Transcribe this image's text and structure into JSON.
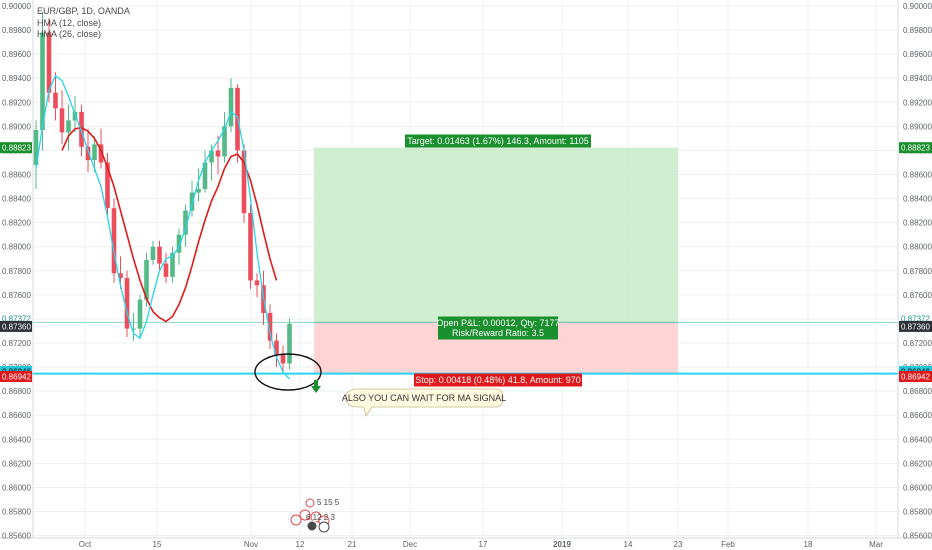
{
  "header": {
    "symbol_line": "EUR/GBP, 1D, OANDA",
    "hma_fast": "HMA (12, close)",
    "hma_slow": "HMA (26, close)"
  },
  "chart_data": {
    "type": "candlestick",
    "symbol": "EUR/GBP",
    "interval": "1D",
    "source": "OANDA",
    "ylim": [
      0.8558,
      0.9005
    ],
    "y_ticks": [
      "0.90000",
      "0.89800",
      "0.89600",
      "0.89400",
      "0.89200",
      "0.89000",
      "0.88800",
      "0.88600",
      "0.88400",
      "0.88200",
      "0.88000",
      "0.87800",
      "0.87600",
      "0.87400",
      "0.87200",
      "0.87000",
      "0.86800",
      "0.86600",
      "0.86400",
      "0.86200",
      "0.86000",
      "0.85800",
      "0.85600"
    ],
    "x_ticks": [
      "Oct",
      "15",
      "Nov",
      "12",
      "21",
      "Dec",
      "17",
      "2019",
      "14",
      "23",
      "Feb",
      "18",
      "Mar"
    ],
    "candles": [
      {
        "o": 0.8868,
        "h": 0.8905,
        "l": 0.8848,
        "c": 0.8897
      },
      {
        "o": 0.8897,
        "h": 0.8995,
        "l": 0.888,
        "c": 0.8978
      },
      {
        "o": 0.8978,
        "h": 0.899,
        "l": 0.892,
        "c": 0.8928
      },
      {
        "o": 0.8928,
        "h": 0.8945,
        "l": 0.8905,
        "c": 0.8915
      },
      {
        "o": 0.8915,
        "h": 0.893,
        "l": 0.8885,
        "c": 0.8895
      },
      {
        "o": 0.8895,
        "h": 0.8918,
        "l": 0.888,
        "c": 0.8905
      },
      {
        "o": 0.8905,
        "h": 0.8925,
        "l": 0.8895,
        "c": 0.8912
      },
      {
        "o": 0.8912,
        "h": 0.8918,
        "l": 0.8875,
        "c": 0.8883
      },
      {
        "o": 0.8883,
        "h": 0.8898,
        "l": 0.8862,
        "c": 0.8872
      },
      {
        "o": 0.8872,
        "h": 0.8892,
        "l": 0.8862,
        "c": 0.8885
      },
      {
        "o": 0.8885,
        "h": 0.8898,
        "l": 0.8865,
        "c": 0.887
      },
      {
        "o": 0.887,
        "h": 0.8878,
        "l": 0.8825,
        "c": 0.8832
      },
      {
        "o": 0.8832,
        "h": 0.884,
        "l": 0.877,
        "c": 0.8778
      },
      {
        "o": 0.8778,
        "h": 0.8792,
        "l": 0.8765,
        "c": 0.8774
      },
      {
        "o": 0.8774,
        "h": 0.878,
        "l": 0.8725,
        "c": 0.8732
      },
      {
        "o": 0.8732,
        "h": 0.8745,
        "l": 0.8722,
        "c": 0.8732
      },
      {
        "o": 0.8732,
        "h": 0.876,
        "l": 0.8725,
        "c": 0.8756
      },
      {
        "o": 0.8756,
        "h": 0.8795,
        "l": 0.875,
        "c": 0.8789
      },
      {
        "o": 0.8789,
        "h": 0.8805,
        "l": 0.8785,
        "c": 0.88
      },
      {
        "o": 0.88,
        "h": 0.8805,
        "l": 0.878,
        "c": 0.8786
      },
      {
        "o": 0.8786,
        "h": 0.8795,
        "l": 0.877,
        "c": 0.8775
      },
      {
        "o": 0.8775,
        "h": 0.88,
        "l": 0.877,
        "c": 0.8795
      },
      {
        "o": 0.8795,
        "h": 0.8815,
        "l": 0.8785,
        "c": 0.881
      },
      {
        "o": 0.881,
        "h": 0.8835,
        "l": 0.88,
        "c": 0.883
      },
      {
        "o": 0.883,
        "h": 0.8855,
        "l": 0.8825,
        "c": 0.8845
      },
      {
        "o": 0.8845,
        "h": 0.8865,
        "l": 0.8838,
        "c": 0.8848
      },
      {
        "o": 0.8848,
        "h": 0.888,
        "l": 0.8845,
        "c": 0.887
      },
      {
        "o": 0.887,
        "h": 0.8885,
        "l": 0.8855,
        "c": 0.888
      },
      {
        "o": 0.888,
        "h": 0.8892,
        "l": 0.886,
        "c": 0.8875
      },
      {
        "o": 0.8875,
        "h": 0.8912,
        "l": 0.887,
        "c": 0.89
      },
      {
        "o": 0.89,
        "h": 0.894,
        "l": 0.8895,
        "c": 0.8932
      },
      {
        "o": 0.8932,
        "h": 0.8935,
        "l": 0.887,
        "c": 0.888
      },
      {
        "o": 0.888,
        "h": 0.8885,
        "l": 0.882,
        "c": 0.8828
      },
      {
        "o": 0.8828,
        "h": 0.8835,
        "l": 0.8765,
        "c": 0.8772
      },
      {
        "o": 0.8772,
        "h": 0.8778,
        "l": 0.8758,
        "c": 0.8768
      },
      {
        "o": 0.8768,
        "h": 0.878,
        "l": 0.8735,
        "c": 0.8745
      },
      {
        "o": 0.8745,
        "h": 0.8752,
        "l": 0.8715,
        "c": 0.8722
      },
      {
        "o": 0.8722,
        "h": 0.8728,
        "l": 0.87,
        "c": 0.871
      },
      {
        "o": 0.871,
        "h": 0.8718,
        "l": 0.8695,
        "c": 0.8703
      },
      {
        "o": 0.8703,
        "h": 0.874,
        "l": 0.8698,
        "c": 0.8736
      }
    ],
    "hma_12": [
      0.8865,
      0.89,
      0.893,
      0.8942,
      0.8938,
      0.8925,
      0.891,
      0.8896,
      0.888,
      0.8865,
      0.885,
      0.8825,
      0.8795,
      0.8768,
      0.8745,
      0.8728,
      0.8724,
      0.8738,
      0.876,
      0.878,
      0.879,
      0.8792,
      0.88,
      0.8815,
      0.8835,
      0.8855,
      0.887,
      0.888,
      0.8888,
      0.8898,
      0.8912,
      0.8908,
      0.888,
      0.884,
      0.8795,
      0.8758,
      0.8728,
      0.8708,
      0.8696,
      0.869
    ],
    "hma_26": [
      null,
      null,
      null,
      null,
      0.888,
      0.8892,
      0.8898,
      0.8899,
      0.8896,
      0.889,
      0.888,
      0.8866,
      0.885,
      0.883,
      0.881,
      0.879,
      0.8772,
      0.8757,
      0.8746,
      0.8741,
      0.8738,
      0.8742,
      0.8752,
      0.8766,
      0.8784,
      0.8804,
      0.8822,
      0.8838,
      0.885,
      0.8865,
      0.8875,
      0.8877,
      0.887,
      0.8855,
      0.8835,
      0.8812,
      0.879,
      0.8772,
      null,
      null
    ],
    "position": {
      "entry": 0.87372,
      "current": 0.8736,
      "target": 0.88823,
      "stop": 0.86942,
      "stop_line": 0.86946
    },
    "price_labels": {
      "target": "0.88823",
      "entry": "0.87372",
      "current": "0.87360",
      "stop_line": "0.86946",
      "stop": "0.86942"
    },
    "target_label": "Target: 0.01463 (1.67%) 146.3, Amount: 1105",
    "pnl_label": "Open P&L: 0.00012, Qty: 7177",
    "rr_label": "Risk/Reward Ratio: 3.5",
    "stop_label": "Stop: 0.00418 (0.48%) 41.8, Amount: 970",
    "note": "ALSO YOU CAN WAIT FOR MA SIGNAL",
    "events": {
      "top": "5 15 5",
      "middle": "6 12 2 3"
    },
    "colors": {
      "up": "#53b987",
      "down": "#eb4d5c",
      "hma_12": "#29d4e8",
      "hma_26": "#e11a1a",
      "target_zone": "#c8ebc8",
      "stop_zone": "#ffcfcf",
      "badge_green": "#1a8f2e",
      "badge_red": "#e0181b",
      "badge_cyan": "#26c6da",
      "stop_line": "#25d5ee"
    }
  }
}
